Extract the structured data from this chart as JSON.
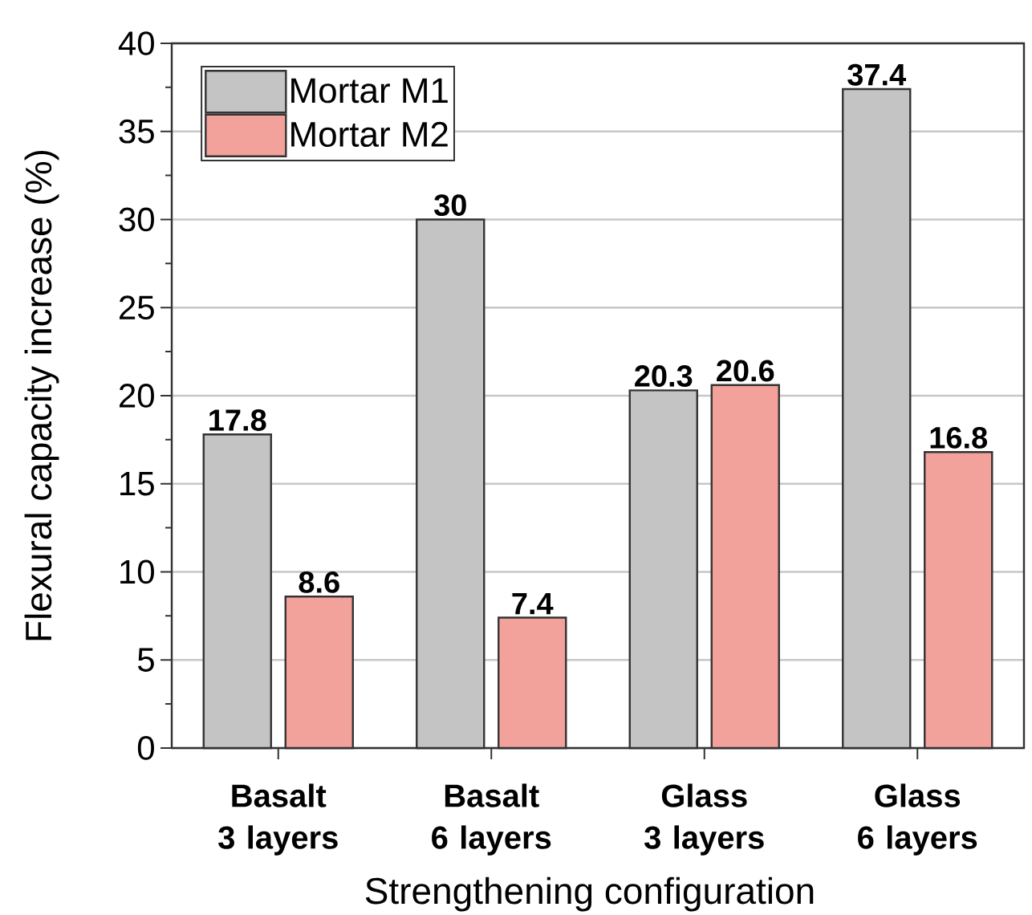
{
  "chart_data": {
    "type": "bar",
    "xlabel": "Strengthening configuration",
    "ylabel": "Flexural capacity increase (%)",
    "categories": [
      "Basalt 3 layers",
      "Basalt 6 layers",
      "Glass 3 layers",
      "Glass 6 layers"
    ],
    "series": [
      {
        "name": "Mortar M1",
        "color": "#c4c4c4",
        "values": [
          17.8,
          30,
          20.3,
          37.4
        ]
      },
      {
        "name": "Mortar M2",
        "color": "#f3a29b",
        "values": [
          8.6,
          7.4,
          20.6,
          16.8
        ]
      }
    ],
    "ylim": [
      0,
      40
    ],
    "yticks": [
      0,
      5,
      10,
      15,
      20,
      25,
      30,
      35,
      40
    ],
    "grid": "y",
    "legend": "top left",
    "data_labels": true
  }
}
